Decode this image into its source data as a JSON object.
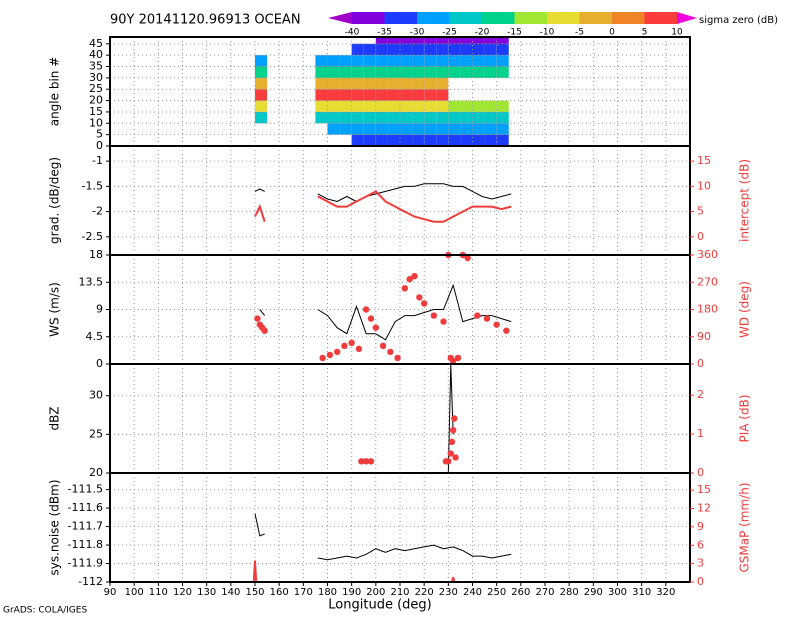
{
  "chart_data": [
    {
      "type": "heatmap",
      "title": "90Y 20141120.96913 OCEAN",
      "ylabel": "angle bin #",
      "xlim": [
        90,
        330
      ],
      "xticks": [
        90,
        100,
        110,
        120,
        130,
        140,
        150,
        160,
        170,
        180,
        190,
        200,
        210,
        220,
        230,
        240,
        250,
        260,
        270,
        280,
        290,
        300,
        310,
        320
      ],
      "ylim": [
        0,
        48
      ],
      "yticks": [
        0,
        5,
        10,
        15,
        20,
        25,
        30,
        35,
        40,
        45
      ],
      "grid": true,
      "x_edges": [
        150,
        155,
        175,
        180,
        185,
        190,
        195,
        200,
        205,
        210,
        215,
        220,
        225,
        230,
        235,
        240,
        245,
        250,
        255
      ],
      "y_edges": [
        0,
        5,
        10,
        15,
        20,
        25,
        30,
        35,
        40,
        45,
        48
      ],
      "z": [
        [
          null,
          null,
          null,
          null,
          null,
          -35,
          -35,
          -35,
          -35,
          -35,
          -35,
          -35,
          -35,
          -35,
          -35,
          -35,
          -35,
          -35
        ],
        [
          null,
          null,
          null,
          -28,
          -28,
          -28,
          -28,
          -28,
          -28,
          -28,
          -28,
          -28,
          -28,
          -28,
          -28,
          -28,
          -28,
          -28
        ],
        [
          -22,
          null,
          -22,
          -22,
          -22,
          -22,
          -22,
          -22,
          -22,
          -22,
          -22,
          -22,
          -22,
          -22,
          -22,
          -22,
          -22,
          -22
        ],
        [
          -10,
          null,
          -10,
          -10,
          -10,
          -10,
          -10,
          -10,
          -10,
          -10,
          -10,
          -10,
          -10,
          -15,
          -15,
          -15,
          -15,
          -15
        ],
        [
          5,
          null,
          5,
          5,
          5,
          5,
          5,
          5,
          5,
          5,
          5,
          5,
          5,
          null,
          null,
          null,
          null,
          null
        ],
        [
          -5,
          null,
          -5,
          -5,
          -5,
          -5,
          -5,
          -5,
          -5,
          -5,
          -5,
          -5,
          -5,
          null,
          null,
          null,
          null,
          null
        ],
        [
          -20,
          null,
          -20,
          -20,
          -20,
          -20,
          -20,
          -20,
          -20,
          -20,
          -20,
          -20,
          -20,
          -20,
          -20,
          -20,
          -20,
          -20
        ],
        [
          -28,
          null,
          -28,
          -28,
          -28,
          -28,
          -28,
          -28,
          -28,
          -28,
          -28,
          -28,
          -28,
          -28,
          -28,
          -28,
          -28,
          -28
        ],
        [
          null,
          null,
          null,
          null,
          null,
          -35,
          -35,
          -35,
          -35,
          -35,
          -35,
          -35,
          -35,
          -35,
          -35,
          -35,
          -35,
          -35
        ],
        [
          null,
          null,
          null,
          null,
          null,
          null,
          null,
          -40,
          -40,
          -40,
          -40,
          -40,
          -40,
          -40,
          -40,
          -40,
          -40,
          -40
        ]
      ],
      "colorbar": {
        "label": "sigma zero (dB)",
        "levels": [
          -40,
          -35,
          -30,
          -25,
          -20,
          -15,
          -10,
          -5,
          0,
          5,
          10
        ],
        "colors": [
          "#a000c8",
          "#8200dc",
          "#1e3cff",
          "#00a0ff",
          "#00c8c8",
          "#00d28c",
          "#a0e632",
          "#e6dc32",
          "#e6af2d",
          "#f08228",
          "#fa3c3c",
          "#f000dc"
        ]
      }
    },
    {
      "type": "line",
      "ylabel": "grad. (dB/deg)",
      "y2label": "intercept (dB)",
      "xlim": [
        90,
        330
      ],
      "xticks": [
        90,
        100,
        110,
        120,
        130,
        140,
        150,
        160,
        170,
        180,
        190,
        200,
        210,
        220,
        230,
        240,
        250,
        260,
        270,
        280,
        290,
        300,
        310,
        320
      ],
      "ylim": [
        -2.86,
        -0.7
      ],
      "yticks": [
        -2.5,
        -2,
        -1.5,
        -1
      ],
      "y2lim": [
        -3.6,
        18
      ],
      "y2ticks": [
        0,
        5,
        10,
        15
      ],
      "grid": true,
      "series": [
        {
          "type": "line",
          "color": "#000000",
          "x": [
            150,
            152,
            154,
            165,
            176,
            180,
            184,
            188,
            192,
            196,
            200,
            204,
            208,
            212,
            216,
            220,
            224,
            228,
            232,
            236,
            240,
            244,
            248,
            252,
            256
          ],
          "values": [
            -1.6,
            -1.55,
            -1.6,
            null,
            -1.65,
            -1.75,
            -1.8,
            -1.7,
            -1.8,
            -1.7,
            -1.65,
            -1.6,
            -1.55,
            -1.5,
            -1.5,
            -1.45,
            -1.45,
            -1.45,
            -1.5,
            -1.5,
            -1.6,
            -1.7,
            -1.75,
            -1.7,
            -1.65
          ]
        },
        {
          "type": "line",
          "axis": "y2",
          "color": "#f03c3c",
          "x": [
            150,
            152,
            154,
            165,
            176,
            180,
            184,
            188,
            192,
            196,
            200,
            204,
            208,
            212,
            216,
            220,
            224,
            228,
            232,
            236,
            240,
            244,
            248,
            252,
            256
          ],
          "values": [
            4,
            6,
            3,
            null,
            8,
            7,
            6,
            6,
            7,
            8,
            9,
            7,
            6,
            5,
            4,
            3.5,
            3,
            3,
            4,
            5,
            6,
            6,
            6,
            5.5,
            6
          ]
        }
      ]
    },
    {
      "type": "line",
      "ylabel": "WS (m/s)",
      "y2label": "WD (deg)",
      "xlim": [
        90,
        330
      ],
      "xticks": [
        90,
        100,
        110,
        120,
        130,
        140,
        150,
        160,
        170,
        180,
        190,
        200,
        210,
        220,
        230,
        240,
        250,
        260,
        270,
        280,
        290,
        300,
        310,
        320
      ],
      "ylim": [
        0,
        18
      ],
      "yticks": [
        0,
        4.5,
        9,
        13.5,
        18
      ],
      "y2lim": [
        0,
        360
      ],
      "y2ticks": [
        0,
        90,
        180,
        270,
        360
      ],
      "grid": true,
      "series": [
        {
          "type": "line",
          "color": "#000000",
          "x": [
            150,
            152,
            154,
            165,
            176,
            180,
            184,
            188,
            192,
            196,
            200,
            204,
            208,
            212,
            216,
            220,
            224,
            228,
            232,
            236,
            240,
            244,
            248,
            252,
            256
          ],
          "values": [
            null,
            9,
            8,
            null,
            9,
            8,
            6,
            5,
            9.5,
            5,
            5,
            4,
            7,
            8,
            8,
            8.5,
            9,
            9,
            13,
            7,
            7.5,
            8,
            8,
            7.5,
            7
          ]
        },
        {
          "type": "scatter",
          "axis": "y2",
          "color": "#f03c3c",
          "x": [
            151,
            152,
            153,
            154,
            178,
            181,
            184,
            187,
            190,
            193,
            196,
            198,
            200,
            203,
            206,
            209,
            212,
            214,
            216,
            218,
            220,
            224,
            228,
            230,
            231,
            232,
            234,
            236,
            238,
            242,
            246,
            250,
            254
          ],
          "values": [
            150,
            130,
            120,
            110,
            20,
            30,
            40,
            60,
            70,
            50,
            180,
            150,
            120,
            60,
            40,
            20,
            250,
            280,
            290,
            220,
            200,
            160,
            140,
            360,
            20,
            10,
            20,
            360,
            350,
            160,
            150,
            130,
            110
          ]
        }
      ]
    },
    {
      "type": "line",
      "ylabel": "dBZ",
      "y2label": "PIA (dB)",
      "xlim": [
        90,
        330
      ],
      "xticks": [
        90,
        100,
        110,
        120,
        130,
        140,
        150,
        160,
        170,
        180,
        190,
        200,
        210,
        220,
        230,
        240,
        250,
        260,
        270,
        280,
        290,
        300,
        310,
        320
      ],
      "ylim": [
        20,
        34.1
      ],
      "yticks": [
        20,
        25,
        30
      ],
      "y2lim": [
        0,
        2.8
      ],
      "y2ticks": [
        0,
        1,
        2
      ],
      "grid": true,
      "series": [
        {
          "type": "line",
          "color": "#000000",
          "x": [
            230,
            231,
            232
          ],
          "values": [
            20,
            34,
            25
          ]
        },
        {
          "type": "scatter",
          "axis": "y2",
          "color": "#f03c3c",
          "x": [
            194,
            196,
            198,
            229,
            230,
            231,
            231.5,
            232,
            232.5,
            233
          ],
          "values": [
            0.3,
            0.3,
            0.3,
            0.3,
            0.3,
            0.5,
            0.8,
            1.1,
            1.4,
            0.4
          ]
        }
      ]
    },
    {
      "type": "line",
      "ylabel": "sys.noise (dBm)",
      "y2label": "GSMaP (mm/h)",
      "xlabel": "Longitude (deg)",
      "xlim": [
        90,
        330
      ],
      "xticks": [
        90,
        100,
        110,
        120,
        130,
        140,
        150,
        160,
        170,
        180,
        190,
        200,
        210,
        220,
        230,
        240,
        250,
        260,
        270,
        280,
        290,
        300,
        310,
        320
      ],
      "ylim": [
        -112,
        -111.41
      ],
      "yticks": [
        -112,
        -111.9,
        -111.8,
        -111.7,
        -111.6,
        -111.5
      ],
      "y2lim": [
        0,
        17.8
      ],
      "y2ticks": [
        0,
        3,
        6,
        9,
        12,
        15
      ],
      "grid": true,
      "series": [
        {
          "type": "line",
          "color": "#000000",
          "x": [
            150,
            152,
            154,
            165,
            176,
            180,
            184,
            188,
            192,
            196,
            200,
            204,
            208,
            212,
            216,
            220,
            224,
            228,
            232,
            236,
            240,
            244,
            248,
            252,
            256
          ],
          "values": [
            -111.63,
            -111.75,
            -111.74,
            null,
            -111.87,
            -111.88,
            -111.87,
            -111.86,
            -111.87,
            -111.85,
            -111.82,
            -111.84,
            -111.82,
            -111.83,
            -111.82,
            -111.81,
            -111.8,
            -111.82,
            -111.81,
            -111.83,
            -111.86,
            -111.86,
            -111.87,
            -111.86,
            -111.85
          ]
        },
        {
          "type": "line",
          "axis": "y2",
          "color": "#f03c3c",
          "x": [
            149.5,
            150,
            150.5,
            160,
            231.5,
            232,
            232.5
          ],
          "values": [
            0,
            3.5,
            0,
            null,
            0,
            0.8,
            0
          ]
        }
      ]
    }
  ],
  "footer": "GrADS: COLA/IGES"
}
